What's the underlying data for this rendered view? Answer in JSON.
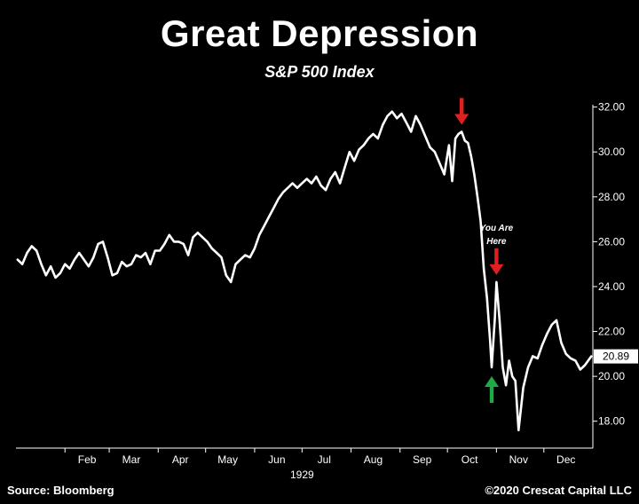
{
  "header": {
    "title": "Great Depression",
    "subtitle": "S&P 500 Index"
  },
  "footer": {
    "source": "Source: Bloomberg",
    "copyright": "©2020 Crescat Capital LLC"
  },
  "colors": {
    "background": "#000000",
    "line": "#ffffff",
    "sell_arrow": "#e02020",
    "buy_arrow": "#1faa4a"
  },
  "chart_data": {
    "type": "line",
    "title": "S&P 500 Index",
    "xlabel": "1929",
    "ylabel": "",
    "x_tick_labels": [
      "Feb",
      "Mar",
      "Apr",
      "May",
      "Jun",
      "Jul",
      "Aug",
      "Sep",
      "Oct",
      "Nov",
      "Dec"
    ],
    "x_year_label": "1929",
    "y_tick_labels": [
      "18.00",
      "20.00",
      "22.00",
      "24.00",
      "26.00",
      "28.00",
      "30.00",
      "32.00"
    ],
    "ylim": [
      17.0,
      32.5
    ],
    "y_axis_side": "right",
    "grid": false,
    "last_value_label": "20.89",
    "annotations": [
      {
        "kind": "arrow-down",
        "color": "red",
        "date": "1929-10-10",
        "value": 30.9
      },
      {
        "kind": "arrow-up",
        "color": "green",
        "date": "1929-10-29",
        "value": 20.4
      },
      {
        "kind": "arrow-down",
        "color": "red",
        "date": "1929-11-01",
        "value": 24.2,
        "text": [
          "You Are",
          "Here"
        ]
      }
    ],
    "series": [
      {
        "x": [
          "1929-01-02",
          "1929-01-05",
          "1929-01-08",
          "1929-01-11",
          "1929-01-14",
          "1929-01-17",
          "1929-01-20",
          "1929-01-23",
          "1929-01-26",
          "1929-01-29",
          "1929-02-01",
          "1929-02-04",
          "1929-02-07",
          "1929-02-10",
          "1929-02-13",
          "1929-02-16",
          "1929-02-19",
          "1929-02-22",
          "1929-02-25",
          "1929-02-28",
          "1929-03-03",
          "1929-03-06",
          "1929-03-09",
          "1929-03-12",
          "1929-03-15",
          "1929-03-18",
          "1929-03-21",
          "1929-03-24",
          "1929-03-27",
          "1929-03-30",
          "1929-04-02",
          "1929-04-05",
          "1929-04-08",
          "1929-04-11",
          "1929-04-14",
          "1929-04-17",
          "1929-04-20",
          "1929-04-23",
          "1929-04-26",
          "1929-04-29",
          "1929-05-02",
          "1929-05-05",
          "1929-05-08",
          "1929-05-11",
          "1929-05-14",
          "1929-05-17",
          "1929-05-20",
          "1929-05-23",
          "1929-05-26",
          "1929-05-29",
          "1929-06-01",
          "1929-06-04",
          "1929-06-07",
          "1929-06-10",
          "1929-06-13",
          "1929-06-16",
          "1929-06-19",
          "1929-06-22",
          "1929-06-25",
          "1929-06-28",
          "1929-07-01",
          "1929-07-04",
          "1929-07-07",
          "1929-07-10",
          "1929-07-13",
          "1929-07-16",
          "1929-07-19",
          "1929-07-22",
          "1929-07-25",
          "1929-07-28",
          "1929-07-31",
          "1929-08-03",
          "1929-08-06",
          "1929-08-09",
          "1929-08-12",
          "1929-08-15",
          "1929-08-18",
          "1929-08-21",
          "1929-08-24",
          "1929-08-27",
          "1929-08-30",
          "1929-09-02",
          "1929-09-05",
          "1929-09-08",
          "1929-09-11",
          "1929-09-14",
          "1929-09-17",
          "1929-09-20",
          "1929-09-23",
          "1929-09-26",
          "1929-09-29",
          "1929-10-02",
          "1929-10-04",
          "1929-10-06",
          "1929-10-08",
          "1929-10-10",
          "1929-10-12",
          "1929-10-14",
          "1929-10-16",
          "1929-10-18",
          "1929-10-20",
          "1929-10-22",
          "1929-10-24",
          "1929-10-26",
          "1929-10-28",
          "1929-10-29",
          "1929-10-31",
          "1929-11-01",
          "1929-11-03",
          "1929-11-05",
          "1929-11-07",
          "1929-11-09",
          "1929-11-11",
          "1929-11-13",
          "1929-11-15",
          "1929-11-18",
          "1929-11-21",
          "1929-11-24",
          "1929-11-27",
          "1929-11-30",
          "1929-12-03",
          "1929-12-06",
          "1929-12-09",
          "1929-12-12",
          "1929-12-15",
          "1929-12-18",
          "1929-12-21",
          "1929-12-24",
          "1929-12-27",
          "1929-12-31"
        ],
        "values": [
          25.2,
          25.0,
          25.5,
          25.8,
          25.6,
          25.0,
          24.5,
          24.9,
          24.4,
          24.6,
          25.0,
          24.8,
          25.2,
          25.5,
          25.2,
          24.9,
          25.3,
          25.9,
          26.0,
          25.3,
          24.5,
          24.6,
          25.1,
          24.9,
          25.0,
          25.4,
          25.3,
          25.5,
          25.0,
          25.6,
          25.6,
          25.9,
          26.3,
          26.0,
          26.0,
          25.9,
          25.4,
          26.2,
          26.4,
          26.2,
          26.0,
          25.7,
          25.5,
          25.3,
          24.5,
          24.2,
          25.0,
          25.2,
          25.4,
          25.3,
          25.7,
          26.3,
          26.7,
          27.1,
          27.5,
          27.9,
          28.2,
          28.4,
          28.6,
          28.4,
          28.6,
          28.8,
          28.6,
          28.9,
          28.5,
          28.3,
          28.8,
          29.1,
          28.6,
          29.3,
          30.0,
          29.6,
          30.1,
          30.3,
          30.6,
          30.8,
          30.6,
          31.2,
          31.6,
          31.8,
          31.5,
          31.7,
          31.3,
          30.9,
          31.6,
          31.2,
          30.7,
          30.2,
          30.0,
          29.5,
          29.0,
          30.3,
          28.7,
          30.6,
          30.8,
          30.9,
          30.5,
          30.4,
          29.8,
          29.0,
          28.0,
          26.9,
          24.8,
          23.5,
          21.6,
          20.4,
          22.6,
          24.2,
          22.5,
          20.4,
          19.6,
          20.7,
          20.0,
          19.8,
          17.6,
          19.5,
          20.4,
          20.9,
          20.8,
          21.4,
          21.9,
          22.3,
          22.5,
          21.5,
          21.0,
          20.8,
          20.7,
          20.3,
          20.5,
          20.89
        ]
      }
    ]
  }
}
